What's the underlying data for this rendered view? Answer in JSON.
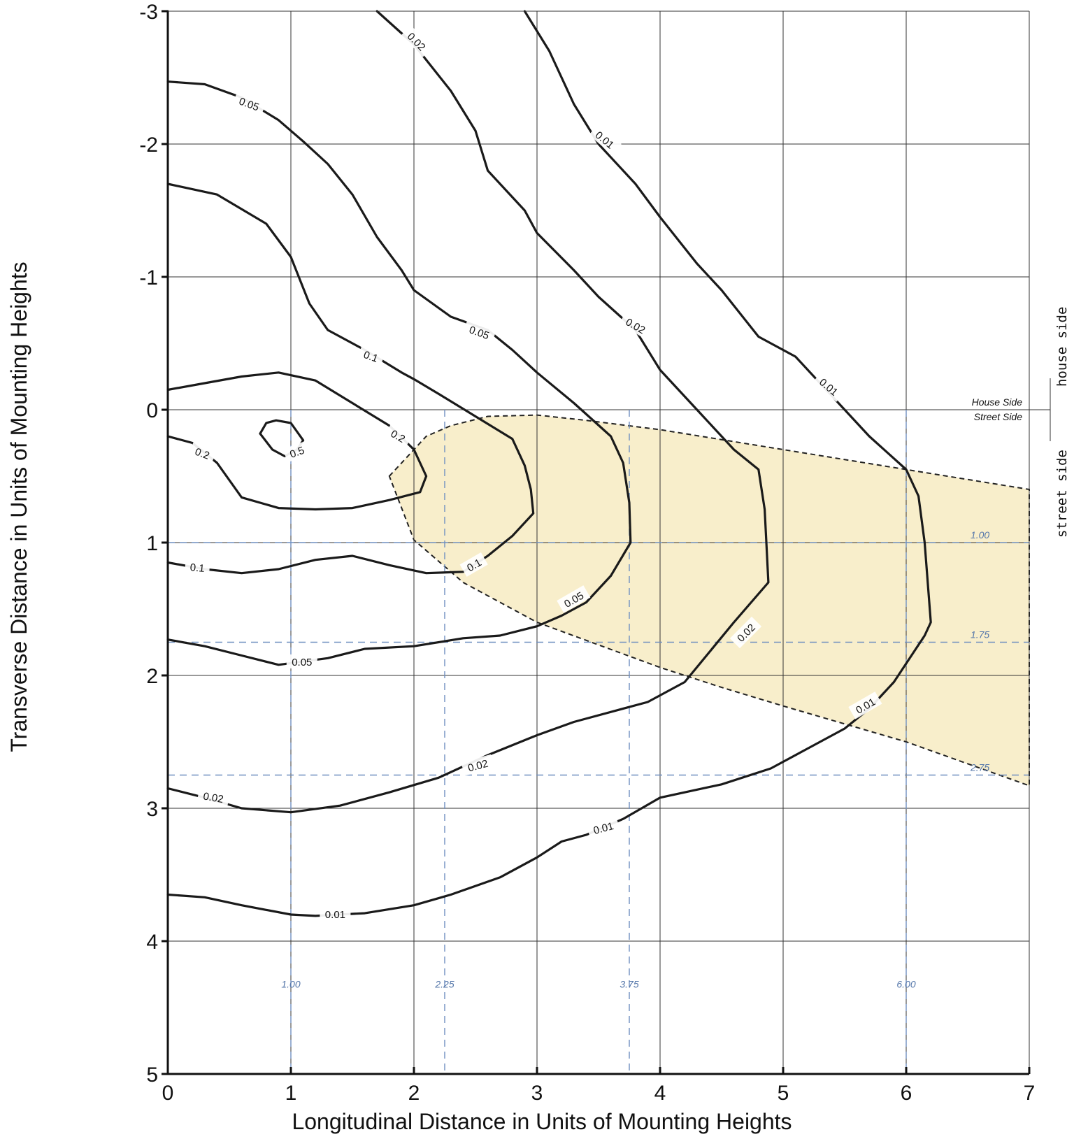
{
  "chart_data": {
    "type": "contour",
    "xlabel": "Longitudinal Distance in Units of Mounting Heights",
    "ylabel": "Transverse Distance in Units of Mounting Heights",
    "xlim": [
      0,
      7
    ],
    "ylim": [
      -3,
      5
    ],
    "y_axis_inverted": true,
    "grid": true,
    "x_ticks": [
      "0",
      "1",
      "2",
      "3",
      "4",
      "5",
      "6",
      "7"
    ],
    "y_ticks": [
      "-3",
      "-2",
      "-1",
      "0",
      "1",
      "2",
      "3",
      "4",
      "5"
    ],
    "reference_lines": {
      "vertical": [
        1.0,
        2.25,
        3.75,
        6.0
      ],
      "vertical_labels": [
        "1.00",
        "2.25",
        "3.75",
        "6.00"
      ],
      "horizontal": [
        1.0,
        1.75,
        2.75
      ],
      "horizontal_labels": [
        "1.00",
        "1.75",
        "2.75"
      ]
    },
    "divider": {
      "y": 0,
      "upper_label": "House Side",
      "lower_label": "Street Side",
      "upper_mono_label": "house side",
      "lower_mono_label": "street side"
    },
    "shaded_region": {
      "fill": "#f8eecb",
      "boundary": [
        [
          1.8,
          0.5
        ],
        [
          2.0,
          0.3
        ],
        [
          2.1,
          0.2
        ],
        [
          2.3,
          0.12
        ],
        [
          2.6,
          0.05
        ],
        [
          3.0,
          0.04
        ],
        [
          3.4,
          0.08
        ],
        [
          4.0,
          0.15
        ],
        [
          5.0,
          0.3
        ],
        [
          6.0,
          0.45
        ],
        [
          7.0,
          0.6
        ],
        [
          7.0,
          2.83
        ],
        [
          6.0,
          2.5
        ],
        [
          5.0,
          2.23
        ],
        [
          4.5,
          2.09
        ],
        [
          4.0,
          1.94
        ],
        [
          3.5,
          1.77
        ],
        [
          3.0,
          1.6
        ],
        [
          2.4,
          1.3
        ],
        [
          2.0,
          0.98
        ],
        [
          1.8,
          0.5
        ]
      ]
    },
    "contours": [
      {
        "level": "0.5",
        "points": [
          [
            0.75,
            0.18
          ],
          [
            0.8,
            0.1
          ],
          [
            0.88,
            0.08
          ],
          [
            1.0,
            0.1
          ],
          [
            1.1,
            0.23
          ],
          [
            1.05,
            0.3
          ],
          [
            0.95,
            0.35
          ],
          [
            0.85,
            0.3
          ],
          [
            0.75,
            0.18
          ]
        ],
        "label_at": [
          1.05,
          0.32
        ],
        "label_angle": -20
      },
      {
        "level": "0.2",
        "points": [
          [
            0,
            -0.15
          ],
          [
            0.3,
            -0.2
          ],
          [
            0.6,
            -0.25
          ],
          [
            0.9,
            -0.28
          ],
          [
            1.2,
            -0.22
          ],
          [
            1.5,
            -0.05
          ],
          [
            1.8,
            0.12
          ],
          [
            2.0,
            0.3
          ],
          [
            2.1,
            0.5
          ],
          [
            2.05,
            0.62
          ],
          [
            1.8,
            0.68
          ],
          [
            1.5,
            0.74
          ],
          [
            1.2,
            0.75
          ],
          [
            0.9,
            0.74
          ],
          [
            0.6,
            0.66
          ],
          [
            0.4,
            0.4
          ],
          [
            0.2,
            0.25
          ],
          [
            0,
            0.2
          ]
        ],
        "label_at": [
          1.87,
          0.2
        ],
        "label_angle": 30
      },
      {
        "level": "0.1",
        "points": [
          [
            0,
            -1.7
          ],
          [
            0.4,
            -1.62
          ],
          [
            0.8,
            -1.4
          ],
          [
            1.0,
            -1.15
          ],
          [
            1.15,
            -0.8
          ],
          [
            1.3,
            -0.6
          ],
          [
            1.6,
            -0.45
          ],
          [
            1.9,
            -0.28
          ],
          [
            2.0,
            -0.23
          ],
          [
            2.2,
            -0.12
          ],
          [
            2.5,
            0.05
          ],
          [
            2.8,
            0.22
          ],
          [
            2.9,
            0.42
          ],
          [
            2.95,
            0.6
          ],
          [
            2.97,
            0.78
          ],
          [
            2.8,
            0.95
          ],
          [
            2.6,
            1.1
          ],
          [
            2.4,
            1.22
          ],
          [
            2.1,
            1.23
          ],
          [
            1.8,
            1.17
          ],
          [
            1.5,
            1.1
          ],
          [
            1.2,
            1.13
          ],
          [
            0.9,
            1.2
          ],
          [
            0.6,
            1.23
          ],
          [
            0.3,
            1.2
          ],
          [
            0,
            1.15
          ]
        ],
        "label_at": [
          2.49,
          1.17
        ],
        "label_angle": -30
      },
      {
        "level": "0.05",
        "points": [
          [
            0,
            -2.47
          ],
          [
            0.3,
            -2.45
          ],
          [
            0.6,
            -2.35
          ],
          [
            0.9,
            -2.18
          ],
          [
            1.1,
            -2.02
          ],
          [
            1.3,
            -1.85
          ],
          [
            1.5,
            -1.62
          ],
          [
            1.7,
            -1.3
          ],
          [
            1.9,
            -1.05
          ],
          [
            2.0,
            -0.9
          ],
          [
            2.3,
            -0.7
          ],
          [
            2.6,
            -0.6
          ],
          [
            2.8,
            -0.45
          ],
          [
            3.0,
            -0.28
          ],
          [
            3.3,
            -0.05
          ],
          [
            3.6,
            0.2
          ],
          [
            3.7,
            0.4
          ],
          [
            3.75,
            0.7
          ],
          [
            3.76,
            1.0
          ],
          [
            3.6,
            1.25
          ],
          [
            3.4,
            1.45
          ],
          [
            3.2,
            1.55
          ],
          [
            3.0,
            1.63
          ],
          [
            2.7,
            1.7
          ],
          [
            2.4,
            1.72
          ],
          [
            2.0,
            1.78
          ],
          [
            1.6,
            1.8
          ],
          [
            1.3,
            1.87
          ],
          [
            0.9,
            1.92
          ],
          [
            0.6,
            1.85
          ],
          [
            0.3,
            1.78
          ],
          [
            0,
            1.73
          ]
        ],
        "label_at": [
          1.09,
          1.9
        ],
        "label_angle": 0
      },
      {
        "level": "0.02",
        "points": [
          [
            1.7,
            -3.0
          ],
          [
            2.0,
            -2.75
          ],
          [
            2.3,
            -2.4
          ],
          [
            2.5,
            -2.1
          ],
          [
            2.6,
            -1.8
          ],
          [
            2.9,
            -1.5
          ],
          [
            3.0,
            -1.33
          ],
          [
            3.3,
            -1.05
          ],
          [
            3.5,
            -0.85
          ],
          [
            3.8,
            -0.6
          ],
          [
            4.0,
            -0.3
          ],
          [
            4.3,
            0.0
          ],
          [
            4.6,
            0.3
          ],
          [
            4.8,
            0.45
          ],
          [
            4.85,
            0.75
          ],
          [
            4.88,
            1.3
          ],
          [
            4.6,
            1.6
          ],
          [
            4.2,
            2.05
          ],
          [
            3.9,
            2.2
          ],
          [
            3.3,
            2.35
          ],
          [
            3.0,
            2.45
          ],
          [
            2.6,
            2.6
          ],
          [
            2.2,
            2.77
          ],
          [
            1.8,
            2.88
          ],
          [
            1.4,
            2.98
          ],
          [
            1.0,
            3.03
          ],
          [
            0.6,
            3.0
          ],
          [
            0.3,
            2.92
          ],
          [
            0,
            2.85
          ]
        ],
        "label_at": [
          2.52,
          2.68
        ],
        "label_angle": -15
      },
      {
        "level": "0.01",
        "points": [
          [
            2.9,
            -3.0
          ],
          [
            3.1,
            -2.7
          ],
          [
            3.3,
            -2.3
          ],
          [
            3.5,
            -2.0
          ],
          [
            3.8,
            -1.7
          ],
          [
            4.0,
            -1.45
          ],
          [
            4.3,
            -1.1
          ],
          [
            4.5,
            -0.9
          ],
          [
            4.8,
            -0.55
          ],
          [
            5.1,
            -0.4
          ],
          [
            5.3,
            -0.2
          ],
          [
            5.5,
            0.0
          ],
          [
            5.7,
            0.2
          ],
          [
            6.0,
            0.45
          ],
          [
            6.1,
            0.65
          ],
          [
            6.15,
            1.0
          ],
          [
            6.2,
            1.6
          ],
          [
            6.15,
            1.7
          ],
          [
            5.9,
            2.05
          ],
          [
            5.7,
            2.25
          ],
          [
            5.5,
            2.4
          ],
          [
            5.2,
            2.55
          ],
          [
            4.9,
            2.7
          ],
          [
            4.5,
            2.82
          ],
          [
            4.0,
            2.92
          ],
          [
            3.7,
            3.08
          ],
          [
            3.4,
            3.2
          ],
          [
            3.2,
            3.25
          ],
          [
            3.0,
            3.37
          ],
          [
            2.7,
            3.52
          ],
          [
            2.3,
            3.65
          ],
          [
            2.0,
            3.73
          ],
          [
            1.6,
            3.79
          ],
          [
            1.2,
            3.81
          ],
          [
            1.0,
            3.8
          ],
          [
            0.6,
            3.73
          ],
          [
            0.3,
            3.67
          ],
          [
            0,
            3.65
          ]
        ],
        "label_at": [
          1.36,
          3.8
        ],
        "label_angle": 0
      }
    ],
    "label_positions": [
      {
        "text": "0.5",
        "at": [
          1.05,
          0.32
        ],
        "angle": -20
      },
      {
        "text": "0.2",
        "at": [
          0.28,
          0.33
        ],
        "angle": 20
      },
      {
        "text": "0.2",
        "at": [
          1.87,
          0.2
        ],
        "angle": 30
      },
      {
        "text": "0.1",
        "at": [
          1.65,
          -0.4
        ],
        "angle": 20
      },
      {
        "text": "0.1",
        "at": [
          0.24,
          1.19
        ],
        "angle": 5
      },
      {
        "text": "0.1",
        "at": [
          2.49,
          1.17
        ],
        "angle": -30
      },
      {
        "text": "0.05",
        "at": [
          0.66,
          -2.3
        ],
        "angle": 20
      },
      {
        "text": "0.05",
        "at": [
          2.53,
          -0.58
        ],
        "angle": 20
      },
      {
        "text": "0.05",
        "at": [
          3.3,
          1.43
        ],
        "angle": -30
      },
      {
        "text": "0.05",
        "at": [
          1.09,
          1.9
        ],
        "angle": 0
      },
      {
        "text": "0.02",
        "at": [
          2.02,
          -2.77
        ],
        "angle": 45
      },
      {
        "text": "0.02",
        "at": [
          3.8,
          -0.63
        ],
        "angle": 30
      },
      {
        "text": "0.02",
        "at": [
          4.7,
          1.68
        ],
        "angle": -45
      },
      {
        "text": "0.02",
        "at": [
          2.52,
          2.68
        ],
        "angle": -15
      },
      {
        "text": "0.02",
        "at": [
          0.37,
          2.92
        ],
        "angle": 10
      },
      {
        "text": "0.01",
        "at": [
          3.55,
          -2.03
        ],
        "angle": 40
      },
      {
        "text": "0.01",
        "at": [
          5.37,
          -0.17
        ],
        "angle": 40
      },
      {
        "text": "0.01",
        "at": [
          5.67,
          2.23
        ],
        "angle": -30
      },
      {
        "text": "0.01",
        "at": [
          3.54,
          3.15
        ],
        "angle": -15
      },
      {
        "text": "0.01",
        "at": [
          1.36,
          3.8
        ],
        "angle": 0
      }
    ]
  }
}
